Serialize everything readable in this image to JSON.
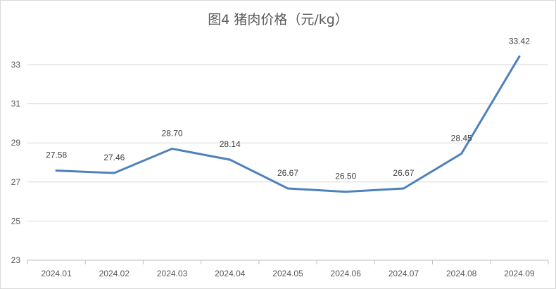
{
  "chart_data": {
    "type": "line",
    "title": "图4  猪肉价格（元/kg）",
    "xlabel": "",
    "ylabel": "",
    "categories": [
      "2024.01",
      "2024.02",
      "2024.03",
      "2024.04",
      "2024.05",
      "2024.06",
      "2024.07",
      "2024.08",
      "2024.09"
    ],
    "series": [
      {
        "values": [
          27.58,
          27.46,
          28.7,
          28.14,
          26.67,
          26.5,
          26.67,
          28.45,
          33.42
        ],
        "labels": [
          "27.58",
          "27.46",
          "28.70",
          "28.14",
          "26.67",
          "26.50",
          "26.67",
          "28.45",
          "33.42"
        ],
        "color": "#4f81bd"
      }
    ],
    "ylim": [
      23,
      35
    ],
    "yticks": [
      23,
      25,
      27,
      29,
      31,
      33
    ],
    "grid": true,
    "legend": "none"
  }
}
